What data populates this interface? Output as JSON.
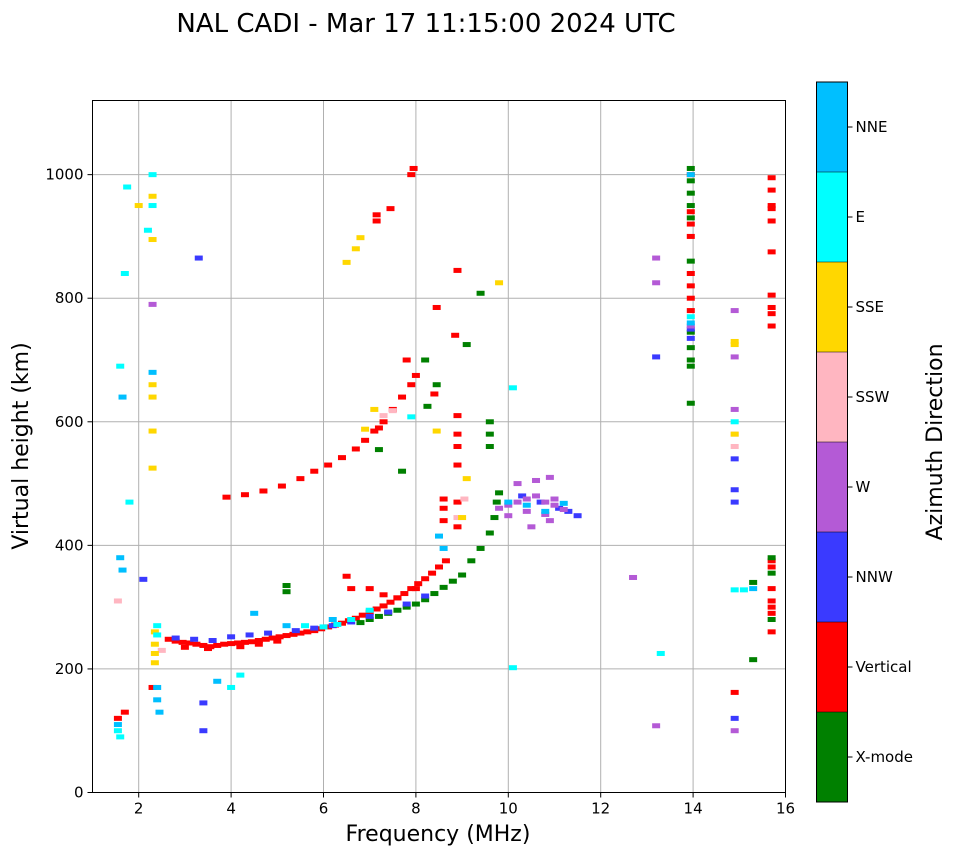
{
  "chart_data": {
    "type": "scatter",
    "title": "NAL CADI - Mar 17 11:15:00 2024 UTC",
    "xlabel": "Frequency (MHz)",
    "ylabel": "Virtual height (km)",
    "xlim": [
      1,
      16
    ],
    "ylim": [
      0,
      1120
    ],
    "xticks": [
      2,
      4,
      6,
      8,
      10,
      12,
      14,
      16
    ],
    "yticks": [
      0,
      200,
      400,
      600,
      800,
      1000
    ],
    "grid": true,
    "colorbar": {
      "label": "Azimuth Direction",
      "categories": [
        {
          "name": "X-mode",
          "color": "#008000"
        },
        {
          "name": "Vertical",
          "color": "#ff0000"
        },
        {
          "name": "NNW",
          "color": "#3a3aff"
        },
        {
          "name": "W",
          "color": "#b45ad6"
        },
        {
          "name": "SSW",
          "color": "#ffb6c1"
        },
        {
          "name": "SSE",
          "color": "#ffd700"
        },
        {
          "name": "E",
          "color": "#00ffff"
        },
        {
          "name": "NNE",
          "color": "#00bfff"
        }
      ]
    },
    "series": [
      {
        "name": "Vertical",
        "points": [
          [
            2.65,
            248
          ],
          [
            2.8,
            245
          ],
          [
            2.95,
            243
          ],
          [
            3.1,
            242
          ],
          [
            3.25,
            240
          ],
          [
            3.4,
            238
          ],
          [
            3.55,
            236
          ],
          [
            3.7,
            238
          ],
          [
            3.85,
            240
          ],
          [
            4.0,
            241
          ],
          [
            4.15,
            242
          ],
          [
            4.3,
            243
          ],
          [
            4.45,
            244
          ],
          [
            4.6,
            246
          ],
          [
            4.75,
            248
          ],
          [
            4.9,
            250
          ],
          [
            5.05,
            252
          ],
          [
            5.2,
            254
          ],
          [
            5.35,
            256
          ],
          [
            5.5,
            258
          ],
          [
            5.65,
            260
          ],
          [
            5.8,
            262
          ],
          [
            5.95,
            265
          ],
          [
            6.1,
            268
          ],
          [
            6.25,
            271
          ],
          [
            6.4,
            274
          ],
          [
            6.55,
            278
          ],
          [
            6.7,
            282
          ],
          [
            6.85,
            287
          ],
          [
            7.0,
            292
          ],
          [
            7.15,
            297
          ],
          [
            7.3,
            302
          ],
          [
            7.45,
            308
          ],
          [
            7.6,
            315
          ],
          [
            7.75,
            322
          ],
          [
            7.9,
            330
          ],
          [
            8.05,
            338
          ],
          [
            8.2,
            346
          ],
          [
            8.35,
            355
          ],
          [
            8.5,
            365
          ],
          [
            8.65,
            375
          ],
          [
            3.0,
            235
          ],
          [
            3.5,
            233
          ],
          [
            4.2,
            236
          ],
          [
            4.6,
            240
          ],
          [
            5.0,
            245
          ],
          [
            6.5,
            350
          ],
          [
            6.6,
            330
          ],
          [
            7.0,
            330
          ],
          [
            7.3,
            320
          ],
          [
            7.6,
            315
          ],
          [
            8.0,
            330
          ],
          [
            8.6,
            440
          ],
          [
            8.6,
            475
          ],
          [
            8.6,
            460
          ],
          [
            8.9,
            470
          ],
          [
            8.9,
            430
          ],
          [
            8.9,
            560
          ],
          [
            8.9,
            580
          ],
          [
            8.9,
            610
          ],
          [
            8.9,
            530
          ],
          [
            3.9,
            478
          ],
          [
            4.3,
            482
          ],
          [
            4.7,
            488
          ],
          [
            5.1,
            496
          ],
          [
            5.5,
            508
          ],
          [
            5.8,
            520
          ],
          [
            6.1,
            530
          ],
          [
            6.4,
            542
          ],
          [
            6.7,
            556
          ],
          [
            6.9,
            570
          ],
          [
            7.1,
            585
          ],
          [
            7.3,
            600
          ],
          [
            7.5,
            620
          ],
          [
            7.7,
            640
          ],
          [
            7.9,
            660
          ],
          [
            8.0,
            675
          ],
          [
            7.95,
            1010
          ],
          [
            7.9,
            1000
          ],
          [
            7.15,
            935
          ],
          [
            7.15,
            925
          ],
          [
            7.45,
            945
          ],
          [
            7.2,
            590
          ],
          [
            8.4,
            645
          ],
          [
            8.45,
            785
          ],
          [
            8.9,
            845
          ],
          [
            8.85,
            740
          ],
          [
            7.8,
            700
          ],
          [
            13.95,
            780
          ],
          [
            13.95,
            800
          ],
          [
            13.95,
            820
          ],
          [
            13.95,
            840
          ],
          [
            13.95,
            900
          ],
          [
            13.95,
            920
          ],
          [
            13.95,
            940
          ],
          [
            13.95,
            1000
          ],
          [
            15.7,
            995
          ],
          [
            15.7,
            975
          ],
          [
            15.7,
            950
          ],
          [
            15.7,
            945
          ],
          [
            15.7,
            925
          ],
          [
            15.7,
            875
          ],
          [
            15.7,
            805
          ],
          [
            15.7,
            785
          ],
          [
            15.7,
            775
          ],
          [
            15.7,
            755
          ],
          [
            15.7,
            375
          ],
          [
            15.7,
            365
          ],
          [
            15.7,
            330
          ],
          [
            15.7,
            310
          ],
          [
            15.7,
            300
          ],
          [
            15.7,
            290
          ],
          [
            15.7,
            260
          ],
          [
            14.9,
            162
          ],
          [
            1.55,
            120
          ],
          [
            1.7,
            130
          ],
          [
            2.3,
            170
          ]
        ]
      },
      {
        "name": "X-mode",
        "points": [
          [
            6.8,
            275
          ],
          [
            7.0,
            280
          ],
          [
            7.2,
            285
          ],
          [
            7.4,
            290
          ],
          [
            7.6,
            295
          ],
          [
            7.8,
            300
          ],
          [
            8.0,
            305
          ],
          [
            8.2,
            312
          ],
          [
            8.4,
            322
          ],
          [
            8.6,
            332
          ],
          [
            8.8,
            342
          ],
          [
            9.0,
            352
          ],
          [
            9.2,
            375
          ],
          [
            9.4,
            395
          ],
          [
            9.6,
            420
          ],
          [
            9.7,
            445
          ],
          [
            9.75,
            470
          ],
          [
            9.8,
            485
          ],
          [
            5.2,
            325
          ],
          [
            5.2,
            335
          ],
          [
            8.2,
            700
          ],
          [
            8.25,
            625
          ],
          [
            8.45,
            660
          ],
          [
            9.1,
            725
          ],
          [
            9.4,
            808
          ],
          [
            9.6,
            600
          ],
          [
            9.6,
            580
          ],
          [
            9.6,
            560
          ],
          [
            13.95,
            1010
          ],
          [
            13.95,
            990
          ],
          [
            13.95,
            970
          ],
          [
            13.95,
            950
          ],
          [
            13.95,
            930
          ],
          [
            13.95,
            860
          ],
          [
            13.95,
            745
          ],
          [
            13.95,
            720
          ],
          [
            13.95,
            700
          ],
          [
            13.95,
            690
          ],
          [
            13.95,
            630
          ],
          [
            15.3,
            215
          ],
          [
            15.7,
            380
          ],
          [
            15.7,
            355
          ],
          [
            15.7,
            280
          ],
          [
            15.3,
            340
          ],
          [
            7.2,
            555
          ],
          [
            7.7,
            520
          ]
        ]
      },
      {
        "name": "NNW",
        "points": [
          [
            2.8,
            250
          ],
          [
            3.2,
            248
          ],
          [
            3.6,
            246
          ],
          [
            4.0,
            252
          ],
          [
            4.4,
            255
          ],
          [
            4.8,
            258
          ],
          [
            5.4,
            262
          ],
          [
            5.8,
            266
          ],
          [
            6.2,
            270
          ],
          [
            6.6,
            276
          ],
          [
            7.0,
            285
          ],
          [
            7.4,
            292
          ],
          [
            7.8,
            305
          ],
          [
            8.2,
            318
          ],
          [
            3.3,
            865
          ],
          [
            3.4,
            100
          ],
          [
            3.4,
            145
          ],
          [
            2.1,
            345
          ],
          [
            10.3,
            480
          ],
          [
            10.7,
            470
          ],
          [
            11.1,
            460
          ],
          [
            11.3,
            455
          ],
          [
            11.5,
            448
          ],
          [
            13.95,
            750
          ],
          [
            13.95,
            735
          ],
          [
            14.9,
            120
          ],
          [
            14.9,
            470
          ],
          [
            14.9,
            490
          ],
          [
            14.9,
            540
          ],
          [
            13.2,
            705
          ]
        ]
      },
      {
        "name": "W",
        "points": [
          [
            9.8,
            460
          ],
          [
            10.0,
            465
          ],
          [
            10.2,
            470
          ],
          [
            10.4,
            475
          ],
          [
            10.6,
            480
          ],
          [
            10.8,
            470
          ],
          [
            11.0,
            465
          ],
          [
            11.2,
            458
          ],
          [
            10.0,
            448
          ],
          [
            10.4,
            455
          ],
          [
            10.8,
            450
          ],
          [
            11.0,
            475
          ],
          [
            10.2,
            500
          ],
          [
            10.6,
            505
          ],
          [
            10.9,
            510
          ],
          [
            10.5,
            430
          ],
          [
            10.9,
            440
          ],
          [
            2.3,
            790
          ],
          [
            13.2,
            865
          ],
          [
            13.2,
            825
          ],
          [
            12.7,
            348
          ],
          [
            13.2,
            108
          ],
          [
            14.9,
            780
          ],
          [
            14.9,
            705
          ],
          [
            14.9,
            620
          ],
          [
            14.9,
            100
          ],
          [
            13.95,
            755
          ]
        ]
      },
      {
        "name": "SSW",
        "points": [
          [
            9.05,
            475
          ],
          [
            8.9,
            445
          ],
          [
            7.3,
            610
          ],
          [
            7.5,
            618
          ],
          [
            14.9,
            580
          ],
          [
            14.9,
            560
          ],
          [
            1.55,
            310
          ],
          [
            2.5,
            230
          ]
        ]
      },
      {
        "name": "SSE",
        "points": [
          [
            2.3,
            660
          ],
          [
            2.3,
            640
          ],
          [
            2.3,
            585
          ],
          [
            2.3,
            525
          ],
          [
            2.35,
            260
          ],
          [
            2.35,
            240
          ],
          [
            2.35,
            225
          ],
          [
            2.35,
            210
          ],
          [
            2.3,
            965
          ],
          [
            2.3,
            895
          ],
          [
            2.0,
            950
          ],
          [
            6.5,
            858
          ],
          [
            6.8,
            898
          ],
          [
            6.7,
            880
          ],
          [
            7.1,
            620
          ],
          [
            6.9,
            588
          ],
          [
            8.45,
            585
          ],
          [
            9.1,
            508
          ],
          [
            9.0,
            445
          ],
          [
            14.9,
            730
          ],
          [
            14.9,
            725
          ],
          [
            14.9,
            580
          ],
          [
            9.8,
            825
          ]
        ]
      },
      {
        "name": "E",
        "points": [
          [
            1.55,
            100
          ],
          [
            1.6,
            90
          ],
          [
            1.75,
            980
          ],
          [
            1.6,
            690
          ],
          [
            2.3,
            1000
          ],
          [
            2.3,
            950
          ],
          [
            2.4,
            270
          ],
          [
            2.4,
            255
          ],
          [
            4.0,
            170
          ],
          [
            4.2,
            190
          ],
          [
            5.6,
            270
          ],
          [
            6.0,
            268
          ],
          [
            6.3,
            272
          ],
          [
            6.6,
            280
          ],
          [
            7.0,
            295
          ],
          [
            7.9,
            608
          ],
          [
            10.1,
            655
          ],
          [
            10.1,
            202
          ],
          [
            13.3,
            225
          ],
          [
            14.9,
            328
          ],
          [
            15.1,
            328
          ],
          [
            14.9,
            600
          ],
          [
            13.95,
            770
          ],
          [
            1.7,
            840
          ],
          [
            1.8,
            470
          ],
          [
            2.2,
            910
          ]
        ]
      },
      {
        "name": "NNE",
        "points": [
          [
            1.55,
            110
          ],
          [
            1.6,
            380
          ],
          [
            1.65,
            640
          ],
          [
            2.3,
            680
          ],
          [
            2.4,
            170
          ],
          [
            2.4,
            150
          ],
          [
            2.45,
            130
          ],
          [
            3.7,
            180
          ],
          [
            4.5,
            290
          ],
          [
            5.2,
            270
          ],
          [
            6.2,
            280
          ],
          [
            8.5,
            415
          ],
          [
            8.6,
            395
          ],
          [
            10.0,
            470
          ],
          [
            10.4,
            465
          ],
          [
            10.8,
            455
          ],
          [
            11.2,
            468
          ],
          [
            13.95,
            1000
          ],
          [
            13.95,
            760
          ],
          [
            15.3,
            330
          ],
          [
            1.65,
            360
          ]
        ]
      }
    ]
  }
}
